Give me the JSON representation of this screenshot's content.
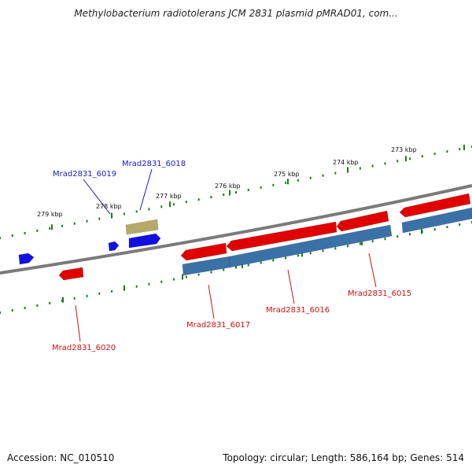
{
  "title": "Methylobacterium radiotolerans JCM 2831 plasmid pMRAD01, com...",
  "footer": {
    "accession": "Accession: NC_010510",
    "summary": "Topology: circular; Length: 586,164 bp; Genes: 514"
  },
  "colors": {
    "forward_gene": "#1010e0",
    "reverse_gene": "#e00000",
    "rna": "#b5aa6a",
    "cds_feature": "#3a72a8",
    "tick": "#1f7a1f",
    "backbone": "#7a7a7a",
    "forward_label": "#1a1acc",
    "reverse_label": "#cc1111"
  },
  "kbp_labels": [
    "279 kbp",
    "278 kbp",
    "277 kbp",
    "276 kbp",
    "275 kbp",
    "274 kbp",
    "273 kbp"
  ],
  "gene_labels": [
    {
      "name": "Mrad2831_6019",
      "strand": "forward"
    },
    {
      "name": "Mrad2831_6018",
      "strand": "forward"
    },
    {
      "name": "Mrad2831_6020",
      "strand": "reverse"
    },
    {
      "name": "Mrad2831_6017",
      "strand": "reverse"
    },
    {
      "name": "Mrad2831_6016",
      "strand": "reverse"
    },
    {
      "name": "Mrad2831_6015",
      "strand": "reverse"
    }
  ]
}
